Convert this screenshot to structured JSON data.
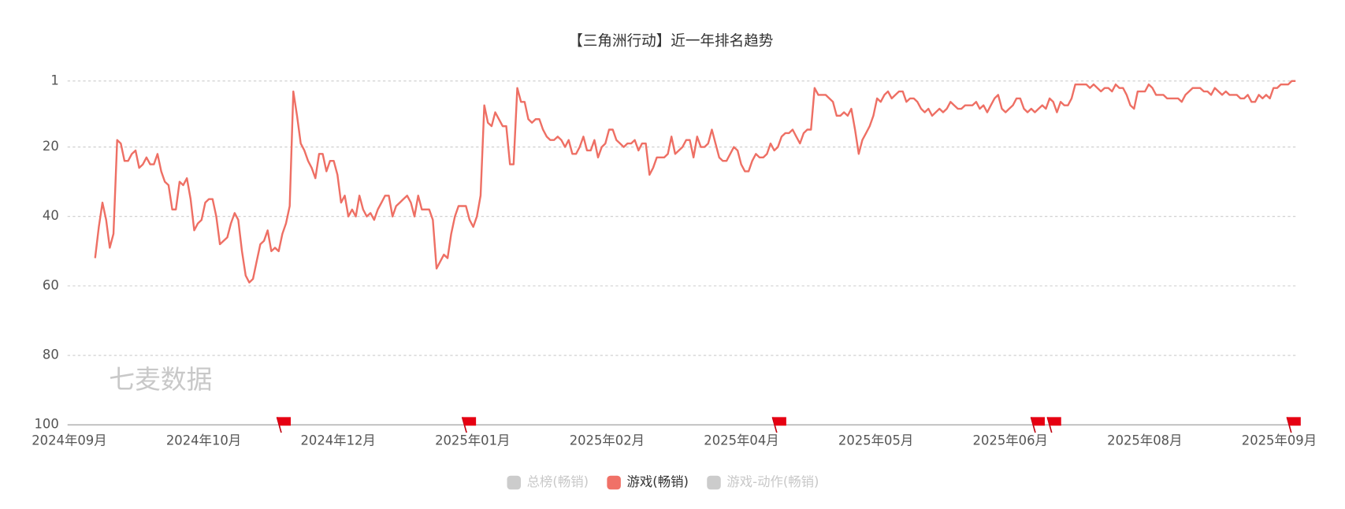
{
  "chart_data": {
    "type": "line",
    "title": "【三角洲行动】近一年排名趋势",
    "watermark": "七麦数据",
    "xtick_labels": [
      "2024年09月",
      "2024年10月",
      "2024年12月",
      "2025年01月",
      "2025年02月",
      "2025年04月",
      "2025年05月",
      "2025年06月",
      "2025年08月",
      "2025年09月"
    ],
    "ylim": [
      1,
      100
    ],
    "y_inverted": true,
    "yticks": [
      1,
      20,
      40,
      60,
      80,
      100
    ],
    "grid": true,
    "legend": [
      {
        "name": "总榜(畅销)",
        "color": "#cccccc",
        "active": false
      },
      {
        "name": "游戏(畅销)",
        "color": "#f07167",
        "active": true
      },
      {
        "name": "游戏-动作(畅销)",
        "color": "#cccccc",
        "active": false
      }
    ],
    "series": [
      {
        "name": "游戏(畅销)",
        "color": "#ee6f64",
        "values": [
          52,
          43,
          36,
          41,
          49,
          45,
          18,
          19,
          24,
          24,
          22,
          21,
          26,
          25,
          23,
          25,
          25,
          22,
          27,
          30,
          31,
          38,
          38,
          30,
          31,
          29,
          35,
          44,
          42,
          41,
          36,
          35,
          35,
          40,
          48,
          47,
          46,
          42,
          39,
          41,
          50,
          57,
          59,
          58,
          53,
          48,
          47,
          44,
          50,
          49,
          50,
          45,
          42,
          37,
          4,
          11,
          19,
          21,
          24,
          26,
          29,
          22,
          22,
          27,
          24,
          24,
          28,
          36,
          34,
          40,
          38,
          40,
          34,
          38,
          40,
          39,
          41,
          38,
          36,
          34,
          34,
          40,
          37,
          36,
          35,
          34,
          36,
          40,
          34,
          38,
          38,
          38,
          41,
          55,
          53,
          51,
          52,
          45,
          40,
          37,
          37,
          37,
          41,
          43,
          40,
          34,
          8,
          13,
          14,
          10,
          12,
          14,
          14,
          25,
          25,
          3,
          7,
          7,
          12,
          13,
          12,
          12,
          15,
          17,
          18,
          18,
          17,
          18,
          20,
          18,
          22,
          22,
          20,
          17,
          21,
          21,
          18,
          23,
          20,
          19,
          15,
          15,
          18,
          19,
          20,
          19,
          19,
          18,
          21,
          19,
          19,
          28,
          26,
          23,
          23,
          23,
          22,
          17,
          22,
          21,
          20,
          18,
          18,
          23,
          17,
          20,
          20,
          19,
          15,
          19,
          23,
          24,
          24,
          22,
          20,
          21,
          25,
          27,
          27,
          24,
          22,
          23,
          23,
          22,
          19,
          21,
          20,
          17,
          16,
          16,
          15,
          17,
          19,
          16,
          15,
          15,
          3,
          5,
          5,
          5,
          6,
          7,
          11,
          11,
          10,
          11,
          9,
          15,
          22,
          18,
          16,
          14,
          11,
          6,
          7,
          5,
          4,
          6,
          5,
          4,
          4,
          7,
          6,
          6,
          7,
          9,
          10,
          9,
          11,
          10,
          9,
          10,
          9,
          7,
          8,
          9,
          9,
          8,
          8,
          8,
          7,
          9,
          8,
          10,
          8,
          6,
          5,
          9,
          10,
          9,
          8,
          6,
          6,
          9,
          10,
          9,
          10,
          9,
          8,
          9,
          6,
          7,
          10,
          7,
          8,
          8,
          6,
          2,
          2,
          2,
          2,
          3,
          2,
          3,
          4,
          3,
          3,
          4,
          2,
          3,
          3,
          5,
          8,
          9,
          4,
          4,
          4,
          2,
          3,
          5,
          5,
          5,
          6,
          6,
          6,
          6,
          7,
          5,
          4,
          3,
          3,
          3,
          4,
          4,
          5,
          3,
          4,
          5,
          4,
          5,
          5,
          5,
          6,
          6,
          5,
          7,
          7,
          5,
          6,
          5,
          6,
          3,
          3,
          2,
          2,
          2,
          1,
          1
        ]
      }
    ]
  }
}
